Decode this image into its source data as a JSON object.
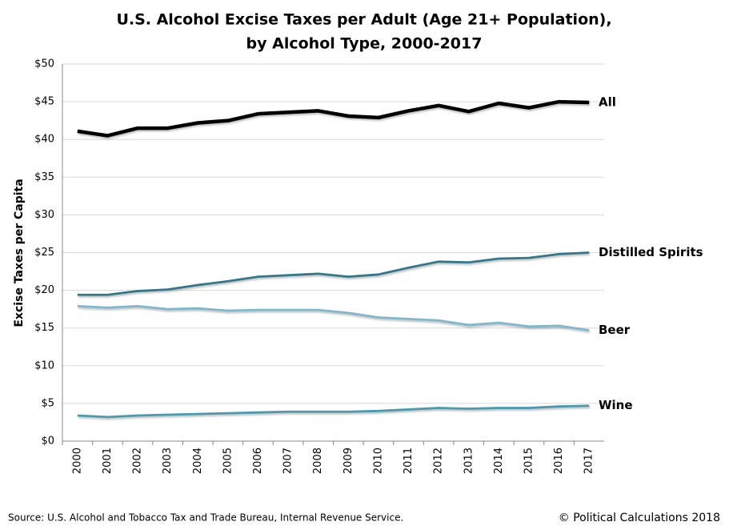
{
  "chart_data": {
    "type": "line",
    "title": [
      "U.S. Alcohol Excise Taxes per Adult (Age 21+ Population),",
      "by Alcohol Type, 2000-2017"
    ],
    "y_label": "Excise Taxes per Capita",
    "source": "Source: U.S. Alcohol and Tobacco Tax and Trade Bureau, Internal Revenue Service.",
    "credit": "© Political Calculations 2018",
    "categories": [
      "2000",
      "2001",
      "2002",
      "2003",
      "2004",
      "2005",
      "2006",
      "2007",
      "2008",
      "2009",
      "2010",
      "2011",
      "2012",
      "2013",
      "2014",
      "2015",
      "2016",
      "2017"
    ],
    "series": [
      {
        "name": "All",
        "color": "#000000",
        "values": [
          41.1,
          40.5,
          41.5,
          41.5,
          42.2,
          42.5,
          43.4,
          43.6,
          43.8,
          43.1,
          42.9,
          43.8,
          44.5,
          43.7,
          44.8,
          44.2,
          45.0,
          44.9
        ]
      },
      {
        "name": "Distilled Spirits",
        "color": "#31788a",
        "values": [
          19.4,
          19.4,
          19.9,
          20.1,
          20.7,
          21.2,
          21.8,
          22.0,
          22.2,
          21.8,
          22.1,
          23.0,
          23.8,
          23.7,
          24.2,
          24.3,
          24.8,
          25.0
        ]
      },
      {
        "name": "Beer",
        "color": "#7fb8cc",
        "values": [
          17.9,
          17.7,
          17.9,
          17.5,
          17.6,
          17.3,
          17.4,
          17.4,
          17.4,
          17.0,
          16.4,
          16.2,
          16.0,
          15.4,
          15.7,
          15.2,
          15.3,
          14.7
        ]
      },
      {
        "name": "Wine",
        "color": "#4a9bb0",
        "values": [
          3.4,
          3.2,
          3.4,
          3.5,
          3.6,
          3.7,
          3.8,
          3.9,
          3.9,
          3.9,
          4.0,
          4.2,
          4.4,
          4.3,
          4.4,
          4.4,
          4.6,
          4.7
        ]
      }
    ],
    "ylim": [
      0,
      50
    ],
    "yticks": [
      {
        "value": 0,
        "label": "$0"
      },
      {
        "value": 5,
        "label": "$5"
      },
      {
        "value": 10,
        "label": "$10"
      },
      {
        "value": 15,
        "label": "$15"
      },
      {
        "value": 20,
        "label": "$20"
      },
      {
        "value": 25,
        "label": "$25"
      },
      {
        "value": 30,
        "label": "$30"
      },
      {
        "value": 35,
        "label": "$35"
      },
      {
        "value": 40,
        "label": "$40"
      },
      {
        "value": 45,
        "label": "$45"
      },
      {
        "value": 50,
        "label": "$50"
      }
    ],
    "grid": true
  }
}
